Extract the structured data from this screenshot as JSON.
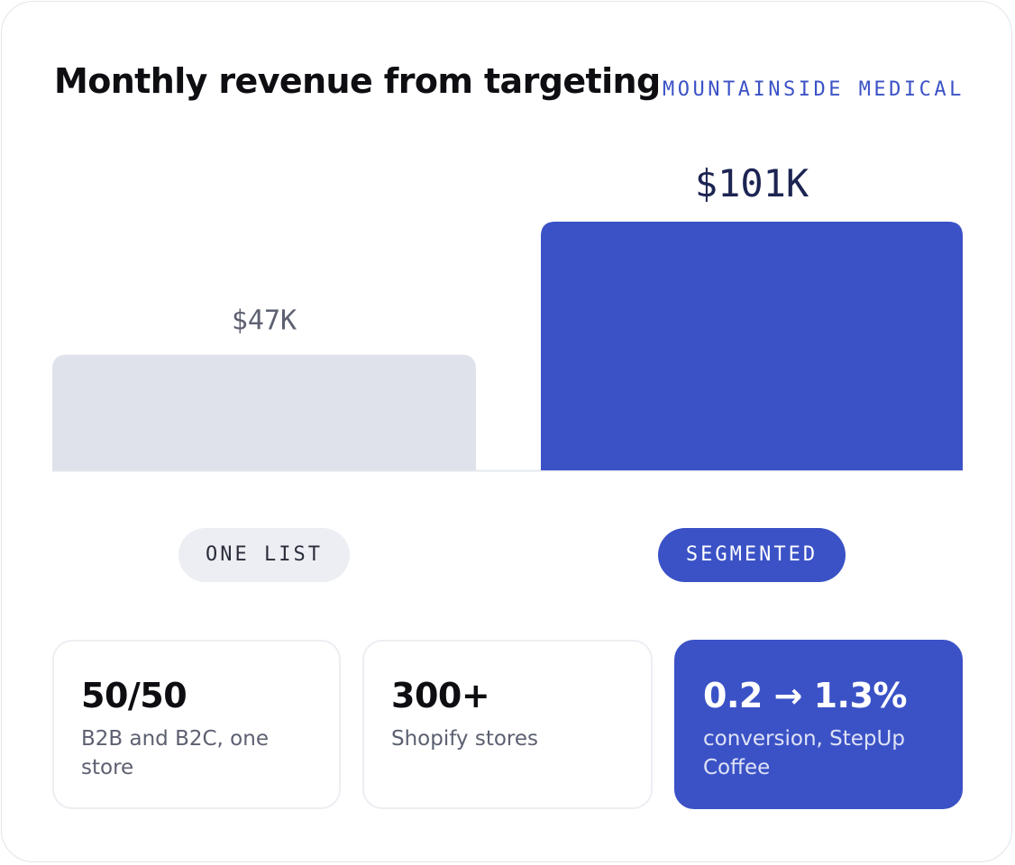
{
  "header": {
    "title": "Monthly revenue from targeting",
    "brand": "MOUNTAINSIDE MEDICAL"
  },
  "chart_data": {
    "type": "bar",
    "title": "Monthly revenue from targeting",
    "categories": [
      "ONE LIST",
      "SEGMENTED"
    ],
    "values": [
      47,
      101
    ],
    "value_labels": [
      "$47K",
      "$101K"
    ],
    "unit": "$K",
    "ylim": [
      0,
      110
    ],
    "grid": false,
    "colors": [
      "#dfe2eb",
      "#3b52c6"
    ]
  },
  "stats": [
    {
      "value": "50/50",
      "label": "B2B and B2C, one store"
    },
    {
      "value": "300+",
      "label": "Shopify stores"
    },
    {
      "value": "0.2 → 1.3%",
      "label": "conversion, StepUp Coffee"
    }
  ],
  "colors": {
    "accent": "#3b52c6",
    "muted_bar": "#dfe2eb",
    "text_dark": "#0d0d12",
    "text_muted": "#5c6070"
  }
}
